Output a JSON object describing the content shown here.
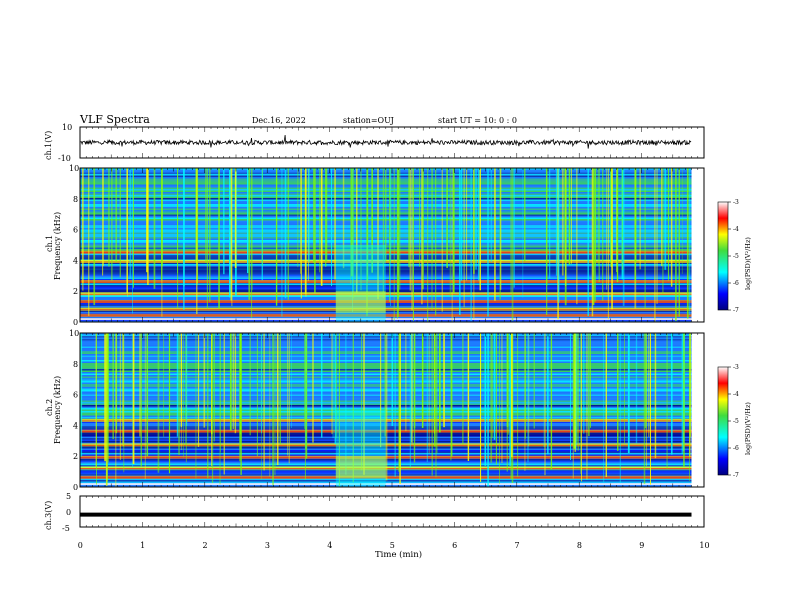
{
  "header": {
    "title": "VLF Spectra",
    "date": "Dec.16, 2022",
    "station": "station=OUJ",
    "start": "start  UT =   10: 0  : 0"
  },
  "chart_data": [
    {
      "type": "line",
      "panel": "ch1-waveform",
      "ylabel": "ch.1(V)",
      "ylim": [
        -10,
        10
      ],
      "yticks": [
        "10",
        "-10"
      ],
      "xlim": [
        0,
        10
      ],
      "baseline": 0,
      "amplitude": 2,
      "x_end": 9.8
    },
    {
      "type": "heatmap",
      "panel": "ch1-spectrogram",
      "ylabel": "Frequency (kHz)",
      "channel": "ch.1",
      "ylim": [
        0,
        10
      ],
      "yticks": [
        "0",
        "2",
        "4",
        "6",
        "8",
        "10"
      ],
      "xlim": [
        0,
        10
      ],
      "x_end": 9.8,
      "colorbar": {
        "label": "log(PSD)(V²/Hz)",
        "range": [
          -7,
          -3
        ],
        "ticks": [
          "-3",
          "-4",
          "-5",
          "-6",
          "-7"
        ]
      },
      "bands_khz": [
        0.4,
        0.8,
        1.3,
        1.8,
        2.6,
        3.9,
        4.5
      ],
      "burst_minutes": [
        4.1,
        4.9
      ]
    },
    {
      "type": "heatmap",
      "panel": "ch2-spectrogram",
      "ylabel": "Frequency (kHz)",
      "channel": "ch.2",
      "ylim": [
        0,
        10
      ],
      "yticks": [
        "0",
        "2",
        "4",
        "6",
        "8",
        "10"
      ],
      "xlim": [
        0,
        10
      ],
      "x_end": 9.8,
      "colorbar": {
        "label": "log(PSD)(V²/Hz)",
        "range": [
          -7,
          -3
        ],
        "ticks": [
          "-3",
          "-4",
          "-5",
          "-6",
          "-7"
        ]
      },
      "bands_khz": [
        0.6,
        1.2,
        1.9,
        2.7,
        3.6,
        4.3
      ],
      "burst_minutes": [
        4.1,
        4.9
      ]
    },
    {
      "type": "line",
      "panel": "ch3-signal",
      "ylabel": "ch.3(V)",
      "ylim": [
        -5,
        5
      ],
      "yticks": [
        "5",
        "0",
        "-5"
      ],
      "xlim": [
        0,
        10
      ],
      "x": [
        0,
        9.8
      ],
      "y": [
        -1,
        -1
      ]
    }
  ],
  "xaxis": {
    "label": "Time (min)",
    "ticks": [
      "0",
      "1",
      "2",
      "3",
      "4",
      "5",
      "6",
      "7",
      "8",
      "9",
      "10"
    ]
  }
}
